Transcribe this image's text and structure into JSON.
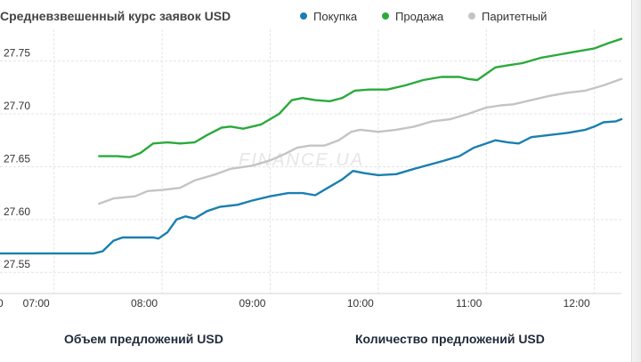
{
  "footer": {
    "left": "Объем предложений USD",
    "right": "Количество предложений USD"
  },
  "colors": {
    "buy": "#1a7fb0",
    "sell": "#2aaa3c",
    "parity": "#c4c4c4"
  },
  "chart_data": {
    "type": "line",
    "title": "Средневзвешенный курс заявок USD",
    "xlabel": "",
    "ylabel": "",
    "x_ticks": [
      "07:00",
      "08:00",
      "09:00",
      "10:00",
      "11:00",
      "12:00"
    ],
    "y_ticks": [
      "27.55",
      "27.60",
      "27.65",
      "27.70",
      "27.75"
    ],
    "ylim": [
      27.53,
      27.78
    ],
    "xlim": [
      "06:30",
      "12:15"
    ],
    "grid": true,
    "legend_position": "top",
    "watermark": "FINANCE.UA",
    "series": [
      {
        "name": "Покупка",
        "color_key": "buy",
        "points": [
          [
            "06:30",
            27.568
          ],
          [
            "07:00",
            27.568
          ],
          [
            "07:22",
            27.568
          ],
          [
            "07:27",
            27.57
          ],
          [
            "07:33",
            27.58
          ],
          [
            "07:38",
            27.583
          ],
          [
            "07:45",
            27.583
          ],
          [
            "07:55",
            27.583
          ],
          [
            "07:58",
            27.582
          ],
          [
            "08:03",
            27.588
          ],
          [
            "08:08",
            27.6
          ],
          [
            "08:13",
            27.603
          ],
          [
            "08:18",
            27.601
          ],
          [
            "08:25",
            27.608
          ],
          [
            "08:32",
            27.612
          ],
          [
            "08:42",
            27.614
          ],
          [
            "08:50",
            27.618
          ],
          [
            "09:00",
            27.622
          ],
          [
            "09:10",
            27.625
          ],
          [
            "09:18",
            27.625
          ],
          [
            "09:25",
            27.623
          ],
          [
            "09:32",
            27.63
          ],
          [
            "09:40",
            27.638
          ],
          [
            "09:46",
            27.646
          ],
          [
            "09:52",
            27.644
          ],
          [
            "10:00",
            27.642
          ],
          [
            "10:10",
            27.643
          ],
          [
            "10:20",
            27.648
          ],
          [
            "10:35",
            27.655
          ],
          [
            "10:45",
            27.66
          ],
          [
            "10:53",
            27.668
          ],
          [
            "11:00",
            27.672
          ],
          [
            "11:05",
            27.675
          ],
          [
            "11:12",
            27.673
          ],
          [
            "11:18",
            27.672
          ],
          [
            "11:25",
            27.678
          ],
          [
            "11:35",
            27.68
          ],
          [
            "11:45",
            27.682
          ],
          [
            "11:55",
            27.685
          ],
          [
            "12:00",
            27.688
          ],
          [
            "12:05",
            27.692
          ],
          [
            "12:12",
            27.693
          ],
          [
            "12:15",
            27.695
          ]
        ]
      },
      {
        "name": "Продажа",
        "color_key": "sell",
        "points": [
          [
            "07:25",
            27.66
          ],
          [
            "07:35",
            27.66
          ],
          [
            "07:42",
            27.659
          ],
          [
            "07:48",
            27.663
          ],
          [
            "07:55",
            27.672
          ],
          [
            "08:03",
            27.673
          ],
          [
            "08:10",
            27.672
          ],
          [
            "08:18",
            27.673
          ],
          [
            "08:25",
            27.68
          ],
          [
            "08:33",
            27.687
          ],
          [
            "08:38",
            27.688
          ],
          [
            "08:45",
            27.686
          ],
          [
            "08:55",
            27.69
          ],
          [
            "09:05",
            27.7
          ],
          [
            "09:12",
            27.713
          ],
          [
            "09:18",
            27.715
          ],
          [
            "09:25",
            27.713
          ],
          [
            "09:33",
            27.712
          ],
          [
            "09:40",
            27.715
          ],
          [
            "09:47",
            27.722
          ],
          [
            "09:55",
            27.723
          ],
          [
            "10:05",
            27.723
          ],
          [
            "10:15",
            27.727
          ],
          [
            "10:25",
            27.732
          ],
          [
            "10:35",
            27.735
          ],
          [
            "10:45",
            27.735
          ],
          [
            "10:50",
            27.733
          ],
          [
            "10:55",
            27.732
          ],
          [
            "11:00",
            27.738
          ],
          [
            "11:05",
            27.744
          ],
          [
            "11:12",
            27.746
          ],
          [
            "11:20",
            27.748
          ],
          [
            "11:30",
            27.753
          ],
          [
            "11:40",
            27.756
          ],
          [
            "11:50",
            27.759
          ],
          [
            "12:00",
            27.762
          ],
          [
            "12:08",
            27.767
          ],
          [
            "12:15",
            27.771
          ]
        ]
      },
      {
        "name": "Паритетный",
        "color_key": "parity",
        "points": [
          [
            "07:25",
            27.615
          ],
          [
            "07:33",
            27.62
          ],
          [
            "07:45",
            27.622
          ],
          [
            "07:52",
            27.627
          ],
          [
            "08:00",
            27.628
          ],
          [
            "08:10",
            27.63
          ],
          [
            "08:18",
            27.637
          ],
          [
            "08:30",
            27.643
          ],
          [
            "08:38",
            27.648
          ],
          [
            "08:50",
            27.651
          ],
          [
            "09:00",
            27.656
          ],
          [
            "09:08",
            27.662
          ],
          [
            "09:15",
            27.668
          ],
          [
            "09:22",
            27.67
          ],
          [
            "09:30",
            27.67
          ],
          [
            "09:38",
            27.675
          ],
          [
            "09:45",
            27.683
          ],
          [
            "09:50",
            27.685
          ],
          [
            "10:00",
            27.683
          ],
          [
            "10:10",
            27.685
          ],
          [
            "10:20",
            27.688
          ],
          [
            "10:30",
            27.693
          ],
          [
            "10:40",
            27.695
          ],
          [
            "10:50",
            27.7
          ],
          [
            "11:00",
            27.706
          ],
          [
            "11:08",
            27.708
          ],
          [
            "11:15",
            27.709
          ],
          [
            "11:25",
            27.713
          ],
          [
            "11:35",
            27.717
          ],
          [
            "11:45",
            27.72
          ],
          [
            "11:55",
            27.722
          ],
          [
            "12:05",
            27.727
          ],
          [
            "12:15",
            27.733
          ]
        ]
      }
    ]
  }
}
